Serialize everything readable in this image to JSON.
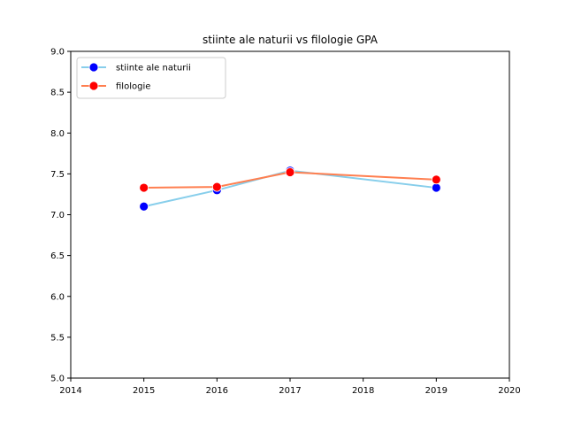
{
  "chart_data": {
    "type": "line",
    "title": "stiinte ale naturii vs filologie GPA",
    "xlabel": "",
    "ylabel": "",
    "xlim": [
      2014,
      2020
    ],
    "ylim": [
      5.0,
      9.0
    ],
    "x_ticks": [
      2014,
      2015,
      2016,
      2017,
      2018,
      2019,
      2020
    ],
    "x_tick_labels": [
      "2014",
      "2015",
      "2016",
      "2017",
      "2018",
      "2019",
      "2020"
    ],
    "y_ticks": [
      5.0,
      5.5,
      6.0,
      6.5,
      7.0,
      7.5,
      8.0,
      8.5,
      9.0
    ],
    "y_tick_labels": [
      "5.0",
      "5.5",
      "6.0",
      "6.5",
      "7.0",
      "7.5",
      "8.0",
      "8.5",
      "9.0"
    ],
    "grid": false,
    "legend_position": "top-left",
    "series": [
      {
        "name": "stiinte ale naturii",
        "x": [
          2015,
          2016,
          2017,
          2019
        ],
        "y": [
          7.1,
          7.3,
          7.54,
          7.33
        ],
        "line_color": "#87ceeb",
        "marker_color": "#0000ff"
      },
      {
        "name": "filologie",
        "x": [
          2015,
          2016,
          2017,
          2019
        ],
        "y": [
          7.33,
          7.34,
          7.52,
          7.43
        ],
        "line_color": "#ff7f50",
        "marker_color": "#ff0000"
      }
    ]
  }
}
